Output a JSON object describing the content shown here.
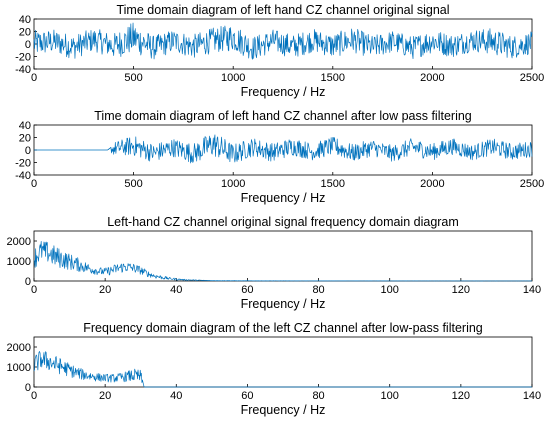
{
  "figure": {
    "line_color": "#0072BD"
  },
  "chart_data": [
    {
      "type": "line",
      "title": "Time domain diagram of left hand CZ channel original signal",
      "xlabel": "Frequency / Hz",
      "ylabel": "",
      "xlim": [
        0,
        2500
      ],
      "ylim": [
        -40,
        40
      ],
      "xticks": [
        0,
        500,
        1000,
        1500,
        2000,
        2500
      ],
      "yticks": [
        -40,
        -20,
        0,
        20,
        40
      ],
      "grid": false,
      "series": [
        {
          "x": [
            0,
            100,
            200,
            300,
            400,
            500,
            600,
            700,
            800,
            900,
            1000,
            1100,
            1200,
            1300,
            1400,
            1500,
            1600,
            1700,
            1800,
            1900,
            2000,
            2100,
            2200,
            2300,
            2400,
            2500
          ],
          "values": [
            2,
            8,
            -10,
            14,
            -6,
            20,
            -12,
            10,
            -8,
            12,
            22,
            -14,
            10,
            -8,
            12,
            -6,
            14,
            -10,
            8,
            -12,
            10,
            -6,
            12,
            8,
            -10,
            4
          ],
          "envelope": [
            28,
            26,
            26,
            25,
            27,
            34,
            26,
            25,
            26,
            27,
            30,
            26,
            25,
            26,
            25,
            26,
            27,
            25,
            24,
            25,
            26,
            25,
            24,
            29,
            25,
            24
          ]
        }
      ]
    },
    {
      "type": "line",
      "title": "Time domain diagram of left hand CZ channel after low pass filtering",
      "xlabel": "Frequency / Hz",
      "ylabel": "",
      "xlim": [
        0,
        2500
      ],
      "ylim": [
        -40,
        40
      ],
      "xticks": [
        0,
        500,
        1000,
        1500,
        2000,
        2500
      ],
      "yticks": [
        -40,
        -20,
        0,
        20,
        40
      ],
      "grid": false,
      "series": [
        {
          "x": [
            0,
            370,
            400,
            500,
            600,
            700,
            800,
            900,
            1000,
            1100,
            1200,
            1300,
            1400,
            1500,
            1600,
            1700,
            1800,
            1900,
            2000,
            2100,
            2200,
            2300,
            2400,
            2500
          ],
          "values": [
            0,
            0,
            4,
            14,
            -10,
            8,
            -12,
            20,
            -14,
            10,
            -8,
            12,
            -6,
            14,
            -10,
            8,
            -12,
            10,
            -6,
            12,
            -8,
            10,
            -6,
            4
          ],
          "envelope": [
            0,
            0,
            14,
            22,
            20,
            20,
            22,
            28,
            22,
            20,
            20,
            20,
            18,
            20,
            19,
            18,
            18,
            19,
            18,
            18,
            17,
            18,
            18,
            17
          ]
        }
      ]
    },
    {
      "type": "line",
      "title": "Left-hand CZ channel original signal frequency domain diagram",
      "xlabel": "Frequency / Hz",
      "ylabel": "",
      "xlim": [
        0,
        140
      ],
      "ylim": [
        0,
        2500
      ],
      "xticks": [
        0,
        20,
        40,
        60,
        80,
        100,
        120,
        140
      ],
      "yticks": [
        0,
        1000,
        2000
      ],
      "grid": false,
      "series": [
        {
          "x": [
            0,
            2,
            4,
            6,
            8,
            10,
            12,
            14,
            16,
            18,
            20,
            22,
            24,
            26,
            28,
            30,
            32,
            34,
            36,
            38,
            40,
            42,
            44,
            46,
            48,
            50,
            60,
            80,
            100,
            120,
            140
          ],
          "values": [
            900,
            1300,
            1200,
            1000,
            900,
            800,
            700,
            600,
            500,
            420,
            380,
            450,
            550,
            600,
            550,
            450,
            300,
            200,
            140,
            100,
            70,
            50,
            40,
            30,
            20,
            15,
            8,
            5,
            3,
            2,
            2
          ],
          "envelope": [
            1800,
            2200,
            2100,
            1900,
            1700,
            1500,
            1300,
            1100,
            900,
            750,
            700,
            850,
            1000,
            1050,
            950,
            800,
            550,
            400,
            300,
            200,
            150,
            100,
            80,
            60,
            50,
            30,
            15,
            10,
            6,
            5,
            5
          ]
        }
      ]
    },
    {
      "type": "line",
      "title": "Frequency domain diagram of the left CZ channel after low-pass filtering",
      "xlabel": "Frequency / Hz",
      "ylabel": "",
      "xlim": [
        0,
        140
      ],
      "ylim": [
        0,
        2500
      ],
      "xticks": [
        0,
        20,
        40,
        60,
        80,
        100,
        120,
        140
      ],
      "yticks": [
        0,
        1000,
        2000
      ],
      "grid": false,
      "series": [
        {
          "x": [
            0,
            2,
            4,
            6,
            8,
            10,
            12,
            14,
            16,
            18,
            20,
            22,
            24,
            26,
            28,
            30,
            31,
            40,
            60,
            80,
            100,
            120,
            140
          ],
          "values": [
            900,
            1200,
            1100,
            950,
            850,
            700,
            600,
            500,
            450,
            400,
            380,
            350,
            380,
            420,
            450,
            380,
            0,
            0,
            0,
            0,
            0,
            0,
            0
          ],
          "envelope": [
            1700,
            2000,
            1900,
            1700,
            1500,
            1300,
            1100,
            950,
            850,
            750,
            700,
            700,
            750,
            850,
            1000,
            950,
            0,
            0,
            0,
            0,
            0,
            0,
            0
          ]
        }
      ]
    }
  ]
}
